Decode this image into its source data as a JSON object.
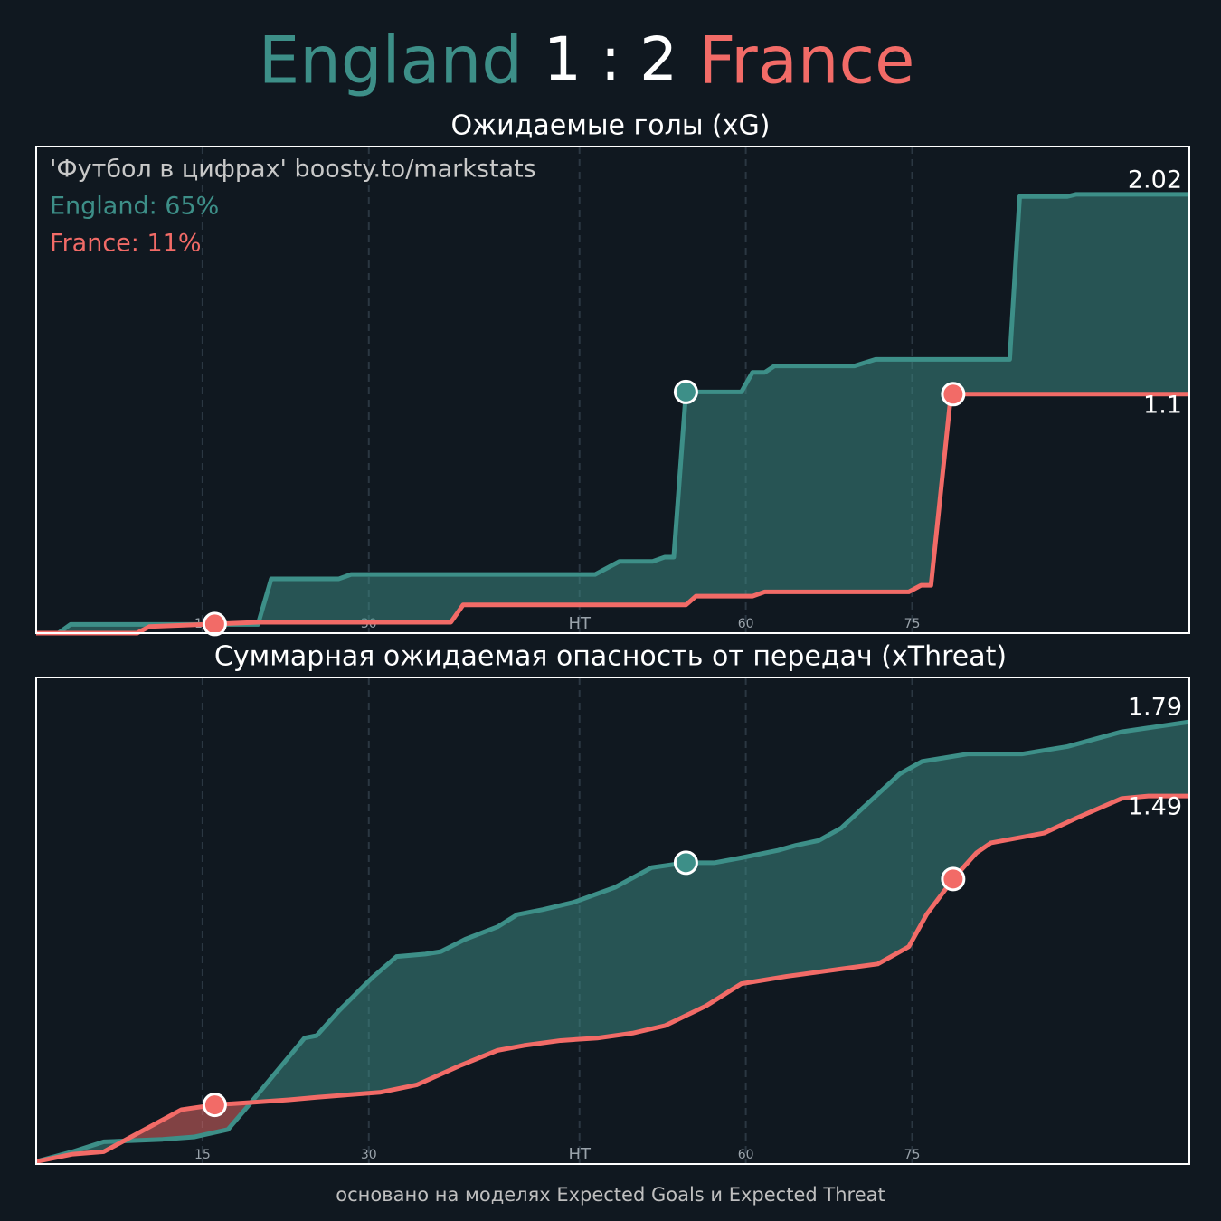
{
  "header": {
    "home": "England",
    "score": "1 : 2",
    "away": "France"
  },
  "footer": "основано на моделях Expected Goals и Expected Threat",
  "chart_data": [
    {
      "type": "line",
      "title": "Ожидаемые голы (xG)",
      "annotations": [
        {
          "text": "'Футбол в цифрах' boosty.to/markstats",
          "color": "#c8c8c8"
        },
        {
          "text": "England: 65%",
          "color": "#3d8f88"
        },
        {
          "text": "France: 11%",
          "color": "#f26b67"
        }
      ],
      "xlim": [
        0,
        104
      ],
      "xticks": [
        15,
        30,
        {
          "value": 49,
          "label": "HT"
        },
        {
          "value": 64,
          "label": "60"
        },
        {
          "value": 79,
          "label": "75"
        }
      ],
      "ylim": [
        0,
        2.24
      ],
      "grid": true,
      "series": [
        {
          "name": "England",
          "color": "#3d8f88",
          "x": [
            0,
            2.0,
            3.1,
            20.0,
            21.2,
            27.3,
            28.4,
            50.4,
            52.6,
            55.6,
            56.7,
            57.5,
            58.6,
            63.6,
            64.6,
            65.7,
            66.6,
            73.8,
            75.7,
            87.8,
            88.7,
            93.0,
            93.8,
            104
          ],
          "values": [
            0,
            0,
            0.04,
            0.04,
            0.25,
            0.25,
            0.27,
            0.27,
            0.33,
            0.33,
            0.35,
            0.35,
            1.11,
            1.11,
            1.2,
            1.2,
            1.23,
            1.23,
            1.26,
            1.26,
            2.01,
            2.01,
            2.02,
            2.02
          ],
          "goals": [
            58.6
          ]
        },
        {
          "name": "France",
          "color": "#f26b67",
          "x": [
            0,
            9.1,
            10.2,
            20.0,
            37.4,
            38.5,
            58.6,
            59.5,
            64.6,
            65.7,
            78.7,
            79.8,
            80.7,
            82.5,
            104
          ],
          "values": [
            0,
            0,
            0.03,
            0.05,
            0.05,
            0.13,
            0.13,
            0.17,
            0.17,
            0.19,
            0.19,
            0.22,
            0.22,
            1.1,
            1.1
          ],
          "goals": [
            16.1,
            82.7
          ]
        }
      ]
    },
    {
      "type": "line",
      "title": "Суммарная ожидаемая опасность от передач (xThreat)",
      "xlim": [
        0,
        104
      ],
      "xticks": [
        15,
        30,
        {
          "value": 49,
          "label": "HT"
        },
        {
          "value": 64,
          "label": "60"
        },
        {
          "value": 79,
          "label": "75"
        }
      ],
      "ylim": [
        0,
        1.97
      ],
      "grid": true,
      "series": [
        {
          "name": "England",
          "color": "#3d8f88",
          "x": [
            0,
            3.3,
            6.1,
            11.4,
            14.3,
            17.3,
            19.2,
            21.6,
            24.2,
            25.3,
            27.3,
            30.2,
            32.5,
            35.1,
            36.5,
            38.7,
            41.6,
            43.4,
            45.7,
            48.5,
            52.2,
            55.5,
            58.6,
            61.2,
            63.6,
            66.9,
            68.5,
            70.6,
            72.6,
            75.0,
            77.9,
            79.9,
            84.0,
            88.9,
            93.0,
            97.9,
            104
          ],
          "values": [
            0.01,
            0.05,
            0.09,
            0.1,
            0.11,
            0.14,
            0.24,
            0.37,
            0.51,
            0.52,
            0.62,
            0.75,
            0.84,
            0.85,
            0.86,
            0.91,
            0.96,
            1.01,
            1.03,
            1.06,
            1.12,
            1.2,
            1.22,
            1.22,
            1.24,
            1.27,
            1.29,
            1.31,
            1.36,
            1.46,
            1.58,
            1.63,
            1.66,
            1.66,
            1.69,
            1.75,
            1.79
          ],
          "goals": [
            58.6
          ]
        },
        {
          "name": "France",
          "color": "#f26b67",
          "x": [
            0,
            3.3,
            6.1,
            9.8,
            13.1,
            16.2,
            19.6,
            22.8,
            25.3,
            28.1,
            31.0,
            34.3,
            38.3,
            41.6,
            44.0,
            47.3,
            50.6,
            53.8,
            56.7,
            60.4,
            63.6,
            67.7,
            72.6,
            75.9,
            77.9,
            78.7,
            80.3,
            82.8,
            84.8,
            86.1,
            90.9,
            93.8,
            97.9,
            100.3,
            104
          ],
          "values": [
            0.01,
            0.04,
            0.05,
            0.14,
            0.22,
            0.24,
            0.25,
            0.26,
            0.27,
            0.28,
            0.29,
            0.32,
            0.4,
            0.46,
            0.48,
            0.5,
            0.51,
            0.53,
            0.56,
            0.64,
            0.73,
            0.76,
            0.79,
            0.81,
            0.86,
            0.88,
            1.01,
            1.16,
            1.26,
            1.3,
            1.34,
            1.4,
            1.48,
            1.49,
            1.49
          ],
          "goals": [
            16.1,
            82.7
          ]
        }
      ]
    }
  ]
}
